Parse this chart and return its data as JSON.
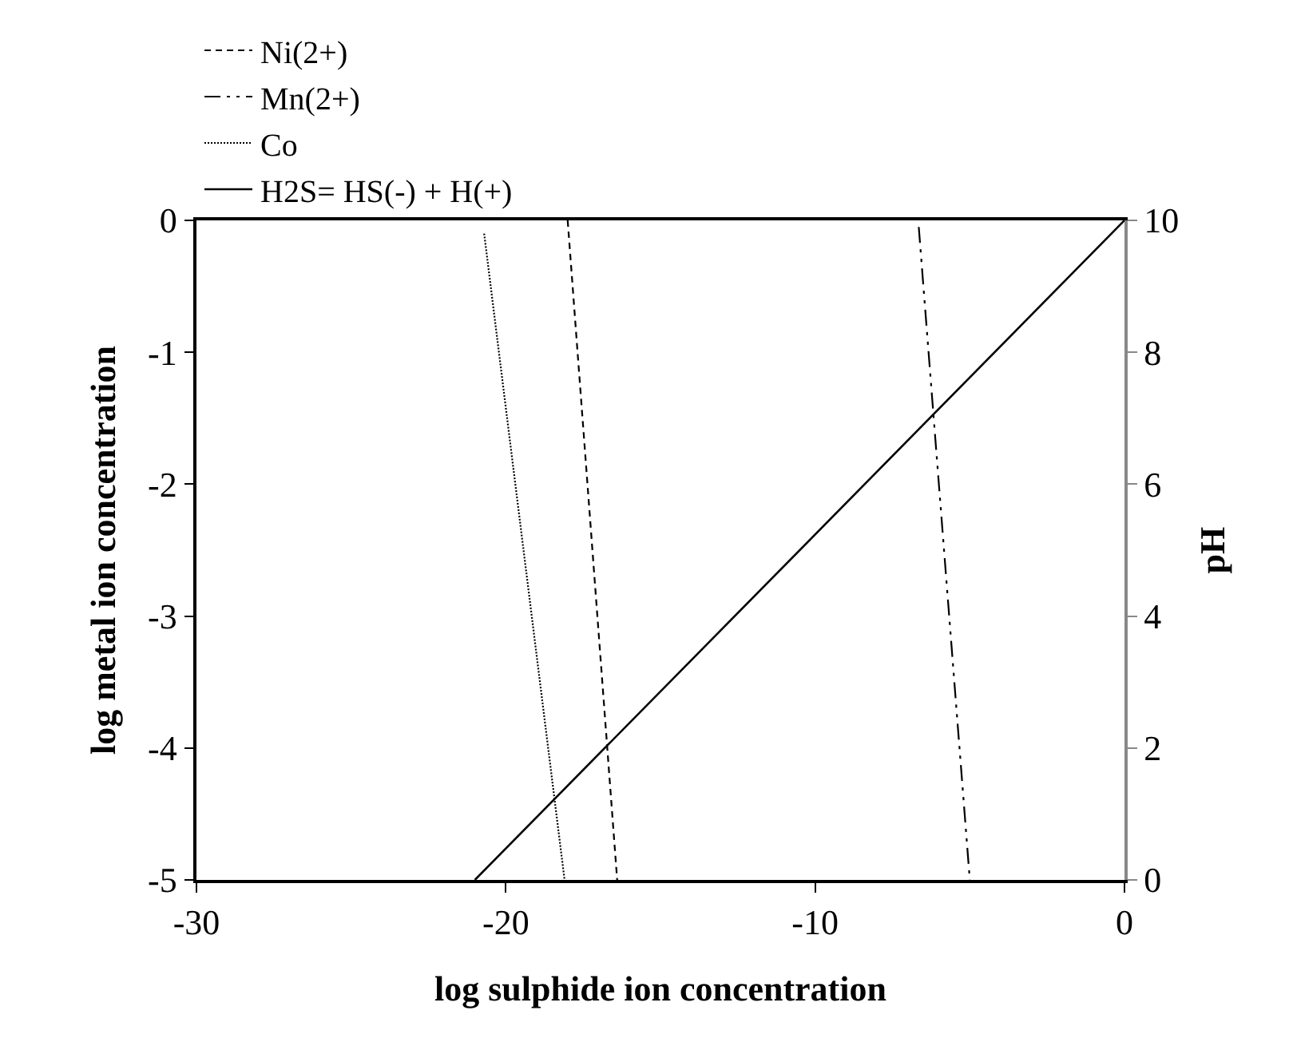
{
  "chart_data": {
    "type": "line",
    "xlabel": "log sulphide ion concentration",
    "ylabel": "log metal ion concentration",
    "y2label": "pH",
    "xlim": [
      -30,
      0
    ],
    "xticks": [
      -30,
      -20,
      -10,
      0
    ],
    "ylim": [
      -5,
      0
    ],
    "yticks": [
      0,
      -1,
      -2,
      -3,
      -4,
      -5
    ],
    "y2lim": [
      0,
      10
    ],
    "y2ticks": [
      0,
      2,
      4,
      6,
      8,
      10
    ],
    "legend": "top",
    "marker": "none",
    "series": [
      {
        "name": "Ni(2+)",
        "color": "#000000",
        "line_style": "dashed",
        "x": [
          -18.0,
          -16.4
        ],
        "values": [
          0,
          -5
        ]
      },
      {
        "name": "Mn(2+)",
        "color": "#000000",
        "line_style": "dashdotdot",
        "x": [
          -6.65,
          -5.0
        ],
        "values": [
          -0.05,
          -5
        ]
      },
      {
        "name": "Co",
        "color": "#000000",
        "line_style": "dotted",
        "x": [
          -20.7,
          -18.1
        ],
        "values": [
          -0.1,
          -5
        ]
      },
      {
        "name": "H2S= HS(-) + H(+)",
        "color": "#000000",
        "line_style": "solid",
        "axis": "y2",
        "x": [
          -21,
          0
        ],
        "values": [
          0,
          10
        ]
      }
    ]
  }
}
